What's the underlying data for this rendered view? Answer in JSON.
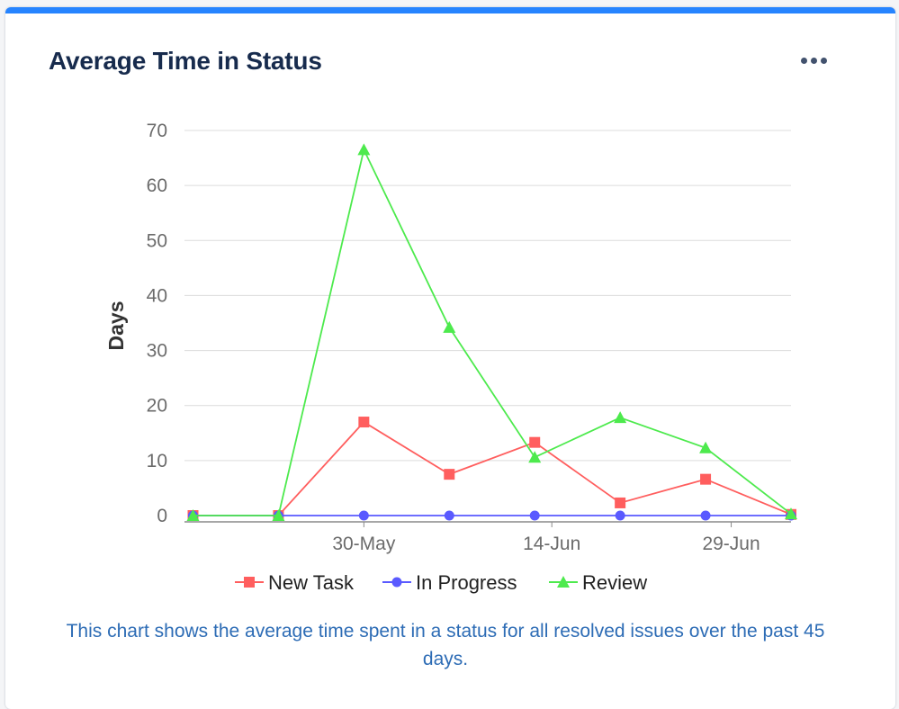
{
  "header": {
    "title": "Average Time in Status",
    "menu_icon": "more-horizontal-icon"
  },
  "colors": {
    "accent": "#2684ff",
    "title": "#172b4d",
    "description": "#2d6cb5"
  },
  "description": "This chart shows the average time spent in a status for all resolved issues over the past 45 days.",
  "chart_data": {
    "type": "line",
    "title": "",
    "xlabel": "",
    "ylabel": "Days",
    "ylim": [
      0,
      70
    ],
    "yticks": [
      0,
      10,
      20,
      30,
      40,
      50,
      60,
      70
    ],
    "grid": true,
    "legend_position": "bottom",
    "x": [
      0,
      1,
      2,
      3,
      4,
      5,
      6,
      7
    ],
    "x_range": [
      -0.1,
      7.0
    ],
    "xticks": [
      {
        "x": 2,
        "label": "30-May"
      },
      {
        "x": 4.2,
        "label": "14-Jun"
      },
      {
        "x": 6.3,
        "label": "29-Jun"
      }
    ],
    "series": [
      {
        "name": "New Task",
        "color": "#ff5e5e",
        "marker": "square",
        "values": [
          0,
          0,
          17,
          7.5,
          13.3,
          2.3,
          6.6,
          0.2
        ]
      },
      {
        "name": "In Progress",
        "color": "#5a5aff",
        "marker": "circle",
        "values": [
          0,
          0,
          0,
          0,
          0,
          0,
          0,
          0
        ]
      },
      {
        "name": "Review",
        "color": "#4dea4d",
        "marker": "triangle",
        "values": [
          0,
          0,
          66.5,
          34.2,
          10.6,
          17.8,
          12.3,
          0.3
        ]
      }
    ]
  }
}
